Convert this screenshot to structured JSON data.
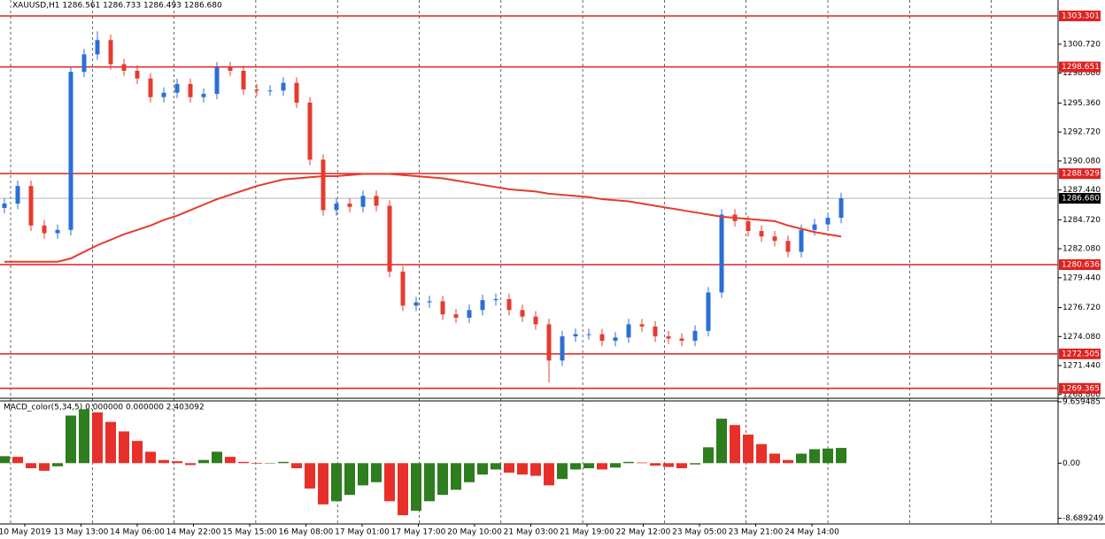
{
  "chart_data": {
    "type": "candlestick",
    "title": "XAUUSD,H1  1286.561 1286.733 1286.493 1286.680",
    "series": [
      {
        "name": "XAUUSD",
        "up_color": "#2b6fd6",
        "down_color": "#e53b2f",
        "open": [
          1285.8,
          1286.2,
          1287.8,
          1284.2,
          1283.5,
          1283.8,
          1298.2,
          1299.8,
          1301.1,
          1298.9,
          1298.3,
          1297.6,
          1295.9,
          1296.3,
          1297.1,
          1295.9,
          1296.2,
          1298.6,
          1298.3,
          1296.6,
          1296.5,
          1296.5,
          1297.2,
          1295.4,
          1290.2,
          1285.6,
          1286.2,
          1285.9,
          1286.9,
          1286.0,
          1280.0,
          1276.9,
          1277.2,
          1277.3,
          1276.1,
          1275.8,
          1276.5,
          1277.4,
          1277.5,
          1276.5,
          1275.9,
          1275.2,
          1271.9,
          1274.1,
          1274.3,
          1274.3,
          1273.7,
          1274.0,
          1275.2,
          1275.0,
          1274.1,
          1273.9,
          1273.7,
          1274.6,
          1278.1,
          1285.2,
          1284.6,
          1283.7,
          1283.2,
          1282.8,
          1281.8,
          1283.8,
          1284.3,
          1284.9
        ],
        "high": [
          1286.7,
          1288.3,
          1288.3,
          1284.7,
          1284.3,
          1298.7,
          1300.3,
          1301.9,
          1301.6,
          1299.4,
          1298.8,
          1298.1,
          1296.8,
          1297.6,
          1297.6,
          1296.7,
          1299.1,
          1299.1,
          1298.8,
          1297.1,
          1297.0,
          1297.7,
          1297.7,
          1295.9,
          1290.7,
          1286.7,
          1286.7,
          1287.4,
          1287.4,
          1286.5,
          1280.5,
          1277.7,
          1277.8,
          1277.8,
          1276.6,
          1277.0,
          1277.9,
          1278.0,
          1278.0,
          1277.0,
          1276.4,
          1275.7,
          1274.6,
          1274.8,
          1274.8,
          1274.8,
          1274.5,
          1275.7,
          1275.7,
          1275.5,
          1274.6,
          1274.4,
          1275.1,
          1278.6,
          1285.7,
          1285.7,
          1285.1,
          1284.2,
          1283.7,
          1283.3,
          1284.3,
          1284.8,
          1285.4,
          1287.2
        ],
        "low": [
          1285.3,
          1285.7,
          1283.7,
          1283.0,
          1283.0,
          1283.3,
          1297.7,
          1299.3,
          1298.4,
          1297.8,
          1297.1,
          1295.4,
          1295.4,
          1295.8,
          1295.4,
          1295.4,
          1295.7,
          1297.8,
          1296.1,
          1296.0,
          1296.0,
          1296.0,
          1294.9,
          1289.7,
          1285.1,
          1285.1,
          1285.4,
          1285.4,
          1285.5,
          1279.5,
          1276.4,
          1276.4,
          1276.7,
          1275.6,
          1275.3,
          1275.3,
          1276.0,
          1276.9,
          1276.0,
          1275.4,
          1274.7,
          1269.9,
          1271.4,
          1273.6,
          1273.8,
          1273.2,
          1273.2,
          1273.5,
          1274.5,
          1273.6,
          1273.4,
          1273.2,
          1273.2,
          1274.1,
          1277.6,
          1284.1,
          1283.2,
          1282.7,
          1282.3,
          1281.3,
          1281.3,
          1283.3,
          1283.8,
          1284.4
        ],
        "close": [
          1286.2,
          1287.8,
          1284.2,
          1283.5,
          1283.8,
          1298.2,
          1299.8,
          1301.1,
          1298.9,
          1298.3,
          1297.6,
          1295.9,
          1296.3,
          1297.1,
          1295.9,
          1296.2,
          1298.6,
          1298.3,
          1296.6,
          1296.5,
          1296.5,
          1297.2,
          1295.4,
          1290.2,
          1285.6,
          1286.2,
          1285.9,
          1286.9,
          1286.0,
          1280.0,
          1276.9,
          1277.2,
          1277.3,
          1276.1,
          1275.8,
          1276.5,
          1277.4,
          1277.5,
          1276.5,
          1275.9,
          1275.2,
          1271.9,
          1274.1,
          1274.3,
          1274.3,
          1273.7,
          1274.0,
          1275.2,
          1275.0,
          1274.1,
          1273.9,
          1273.7,
          1274.6,
          1278.1,
          1285.2,
          1284.6,
          1283.7,
          1283.2,
          1282.8,
          1281.8,
          1283.8,
          1284.3,
          1284.9,
          1286.68
        ]
      }
    ],
    "ma": {
      "color": "#e53b2f",
      "values": [
        1280.9,
        1280.9,
        1280.9,
        1280.9,
        1280.9,
        1281.2,
        1281.8,
        1282.4,
        1282.9,
        1283.4,
        1283.8,
        1284.2,
        1284.7,
        1285.1,
        1285.6,
        1286.1,
        1286.6,
        1287.0,
        1287.4,
        1287.8,
        1288.1,
        1288.4,
        1288.5,
        1288.6,
        1288.7,
        1288.7,
        1288.8,
        1288.9,
        1288.9,
        1288.9,
        1288.8,
        1288.7,
        1288.6,
        1288.5,
        1288.3,
        1288.1,
        1287.9,
        1287.7,
        1287.5,
        1287.4,
        1287.3,
        1287.1,
        1287.0,
        1286.9,
        1286.8,
        1286.6,
        1286.5,
        1286.4,
        1286.2,
        1286.0,
        1285.8,
        1285.6,
        1285.4,
        1285.2,
        1285.0,
        1284.9,
        1284.8,
        1284.7,
        1284.6,
        1284.2,
        1283.9,
        1283.6,
        1283.4,
        1283.2
      ]
    },
    "levels": [
      1303.301,
      1298.651,
      1288.929,
      1280.636,
      1272.505,
      1269.365
    ],
    "level_color": "#e02020",
    "last_price": {
      "value": 1286.68,
      "label": "1286.680"
    },
    "ylim": [
      1268.7,
      1304.75
    ],
    "yticks": [
      {
        "value": 1300.72,
        "label": "1300.720"
      },
      {
        "value": 1298.08,
        "label": "1298.080"
      },
      {
        "value": 1295.36,
        "label": "1295.360"
      },
      {
        "value": 1292.72,
        "label": "1292.720"
      },
      {
        "value": 1290.08,
        "label": "1290.080"
      },
      {
        "value": 1287.44,
        "label": "1287.440"
      },
      {
        "value": 1284.72,
        "label": "1284.720"
      },
      {
        "value": 1282.08,
        "label": "1282.080"
      },
      {
        "value": 1279.44,
        "label": "1279.440"
      },
      {
        "value": 1276.72,
        "label": "1276.720"
      },
      {
        "value": 1274.08,
        "label": "1274.080"
      },
      {
        "value": 1271.44,
        "label": "1271.440"
      },
      {
        "value": 1268.8,
        "label": "1268.800"
      }
    ],
    "xtick_labels": [
      "10 May 2019",
      "13 May 13:00",
      "14 May 06:00",
      "14 May 22:00",
      "15 May 15:00",
      "16 May 08:00",
      "17 May 01:00",
      "17 May 17:00",
      "20 May 10:00",
      "21 May 03:00",
      "21 May 19:00",
      "22 May 12:00",
      "23 May 05:00",
      "23 May 21:00",
      "24 May 14:00"
    ],
    "macd": {
      "title": "MACD_color(5,34,5) 0.000000 0.000000 2.403092",
      "up_color": "#2e7d1e",
      "down_color": "#e8302a",
      "values": [
        1.1,
        1.0,
        -0.8,
        -1.2,
        -0.5,
        7.5,
        8.5,
        8.0,
        6.5,
        5.0,
        3.5,
        1.8,
        0.5,
        0.3,
        -0.3,
        0.5,
        1.8,
        1.0,
        0.2,
        -0.1,
        0.0,
        0.2,
        -0.8,
        -4.0,
        -6.5,
        -6.0,
        -5.0,
        -3.5,
        -3.0,
        -6.0,
        -8.2,
        -7.5,
        -6.0,
        -5.0,
        -4.2,
        -3.0,
        -1.8,
        -1.0,
        -1.5,
        -1.8,
        -2.0,
        -3.5,
        -2.5,
        -1.0,
        -0.8,
        -1.0,
        -0.7,
        0.2,
        0.1,
        -0.4,
        -0.6,
        -0.8,
        -0.2,
        2.5,
        7.0,
        6.0,
        4.5,
        3.0,
        1.5,
        0.5,
        1.5,
        2.2,
        2.3,
        2.4
      ],
      "ylim": [
        -9.3,
        9.8
      ],
      "yticks": [
        9.659485,
        {
          "value": 0,
          "label": "0.00"
        },
        -8.689249
      ]
    }
  }
}
